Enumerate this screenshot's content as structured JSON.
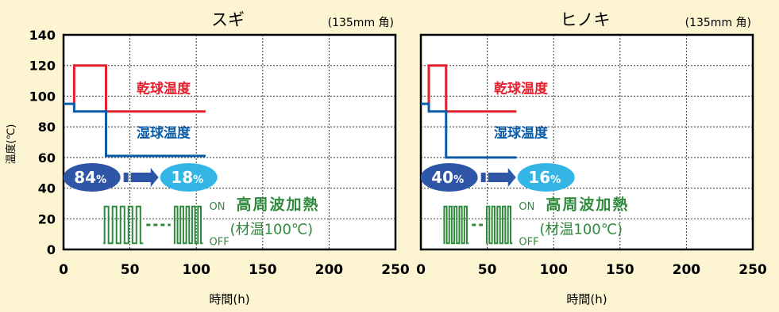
{
  "page": {
    "ylabel": "温度(℃)",
    "background": "#fdf4d2"
  },
  "colors": {
    "dry_bulb": "#e5202e",
    "wet_bulb": "#0a5ca8",
    "heating": "#2f8a3c",
    "badge_before": "#2f56a6",
    "badge_after": "#33b6e6",
    "grid": "#333333"
  },
  "chart_data": [
    {
      "type": "line",
      "title": "スギ",
      "subtitle": "(135mm 角)",
      "xlabel": "時間(h)",
      "ylabel": "温度(℃)",
      "xlim": [
        0,
        250
      ],
      "ylim": [
        0,
        140
      ],
      "x_ticks": [
        "0",
        "50",
        "100",
        "150",
        "200",
        "250"
      ],
      "y_ticks": [
        "0",
        "20",
        "40",
        "60",
        "80",
        "100",
        "120",
        "140"
      ],
      "grid": true,
      "series": [
        {
          "name": "乾球温度",
          "color": "#e5202e",
          "x": [
            8,
            8,
            32,
            32,
            107
          ],
          "y": [
            95,
            120,
            120,
            90,
            90
          ]
        },
        {
          "name": "湿球温度",
          "color": "#0a5ca8",
          "x": [
            0,
            8,
            8,
            32,
            32,
            107
          ],
          "y": [
            95,
            95,
            90,
            90,
            61,
            61
          ]
        }
      ],
      "moisture": {
        "before": "84",
        "after": "18",
        "unit": "%"
      },
      "heating": {
        "label": "高周波加熱",
        "note": "(材温100℃)",
        "on": "ON",
        "off": "OFF",
        "x_start": 30,
        "x_end": 105,
        "gap_start": 60,
        "gap_end": 83
      }
    },
    {
      "type": "line",
      "title": "ヒノキ",
      "subtitle": "(135mm 角)",
      "xlabel": "時間(h)",
      "ylabel": "",
      "xlim": [
        0,
        250
      ],
      "ylim": [
        0,
        140
      ],
      "x_ticks": [
        "0",
        "50",
        "100",
        "150",
        "200",
        "250"
      ],
      "y_ticks": [],
      "grid": true,
      "series": [
        {
          "name": "乾球温度",
          "color": "#e5202e",
          "x": [
            6,
            6,
            19,
            19,
            72
          ],
          "y": [
            95,
            120,
            120,
            90,
            90
          ]
        },
        {
          "name": "湿球温度",
          "color": "#0a5ca8",
          "x": [
            0,
            6,
            6,
            19,
            19,
            72
          ],
          "y": [
            95,
            95,
            90,
            90,
            60,
            60
          ]
        }
      ],
      "moisture": {
        "before": "40",
        "after": "16",
        "unit": "%"
      },
      "heating": {
        "label": "高周波加熱",
        "note": "(材温100℃)",
        "on": "ON",
        "off": "OFF",
        "x_start": 17,
        "x_end": 69,
        "gap_start": 36,
        "gap_end": 49
      }
    }
  ]
}
